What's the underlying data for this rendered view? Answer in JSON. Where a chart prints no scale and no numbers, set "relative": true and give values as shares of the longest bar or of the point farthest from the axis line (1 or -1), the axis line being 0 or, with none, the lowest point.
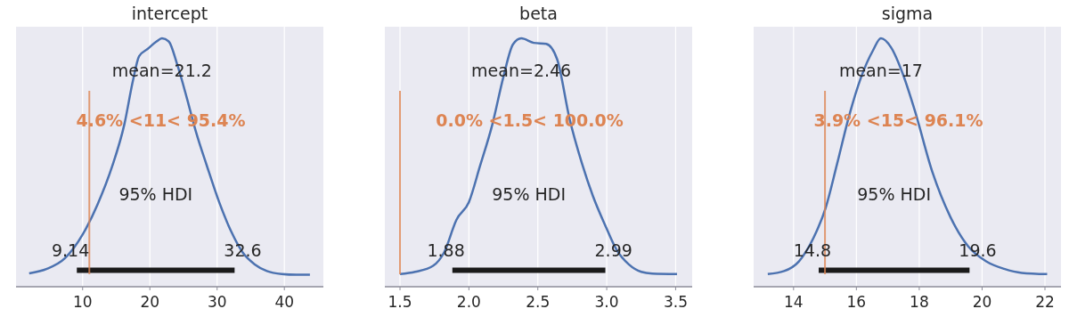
{
  "chart_data": [
    {
      "type": "line",
      "title": "intercept",
      "relative": true,
      "grid": "x",
      "series": [
        {
          "color": "#4c72b0",
          "x": [
            2.05,
            4.7,
            7.35,
            10,
            12.2,
            14.4,
            16.2,
            17.5,
            18.4,
            19.7,
            21.0,
            21.8,
            22.8,
            24.1,
            25.5,
            26.8,
            28.5,
            30.3,
            32.1,
            33.8,
            35.6,
            37.4,
            39.6,
            41.8,
            43.8
          ],
          "values": [
            0.054,
            0.072,
            0.114,
            0.21,
            0.33,
            0.485,
            0.653,
            0.832,
            0.928,
            0.958,
            0.988,
            1,
            0.988,
            0.892,
            0.76,
            0.629,
            0.485,
            0.341,
            0.222,
            0.138,
            0.09,
            0.063,
            0.051,
            0.048,
            0.048
          ]
        },
        {
          "color": "#1a1a1a",
          "x": [
            9.14,
            32.6
          ],
          "values": [
            0.066,
            0.066
          ]
        }
      ],
      "xlim": [
        0.1,
        45.8
      ],
      "xticks": [
        10,
        20,
        30,
        40
      ],
      "ref_lines": [
        {
          "axis": "x",
          "value": 11,
          "label": "4.6% <11< 95.4%",
          "color": "#dd8452"
        }
      ],
      "annotations": [
        "mean=21.2",
        "95% HDI",
        "9.14",
        "32.6"
      ]
    },
    {
      "type": "line",
      "title": "beta",
      "relative": true,
      "grid": "x",
      "series": [
        {
          "color": "#4c72b0",
          "x": [
            1.5,
            1.61,
            1.74,
            1.82,
            1.91,
            2.0,
            2.08,
            2.17,
            2.25,
            2.32,
            2.38,
            2.47,
            2.56,
            2.64,
            2.73,
            2.82,
            2.9,
            2.99,
            3.07,
            3.16,
            3.25,
            3.33,
            3.51
          ],
          "values": [
            0.051,
            0.06,
            0.084,
            0.138,
            0.27,
            0.341,
            0.485,
            0.653,
            0.844,
            0.976,
            1,
            0.982,
            0.978,
            0.916,
            0.677,
            0.497,
            0.365,
            0.246,
            0.15,
            0.09,
            0.06,
            0.053,
            0.051
          ]
        },
        {
          "color": "#1a1a1a",
          "x": [
            1.88,
            2.99
          ],
          "values": [
            0.066,
            0.066
          ]
        }
      ],
      "xlim": [
        1.39,
        3.62
      ],
      "xticks": [
        1.5,
        {
          "value": 2,
          "label": "2.0"
        },
        2.5,
        {
          "value": 3,
          "label": "3.0"
        },
        3.5
      ],
      "ref_lines": [
        {
          "axis": "x",
          "value": 1.5,
          "label": "0.0% <1.5< 100.0%",
          "color": "#dd8452"
        }
      ],
      "annotations": [
        "mean=2.46",
        "95% HDI",
        "1.88",
        "2.99"
      ]
    },
    {
      "type": "line",
      "title": "sigma",
      "relative": true,
      "grid": "x",
      "series": [
        {
          "color": "#4c72b0",
          "x": [
            13.18,
            13.7,
            14.17,
            14.64,
            15.02,
            15.39,
            15.77,
            16.15,
            16.53,
            16.78,
            17.1,
            17.48,
            17.85,
            18.42,
            18.99,
            19.56,
            20.13,
            20.7,
            21.26,
            22.07
          ],
          "values": [
            0.051,
            0.063,
            0.102,
            0.198,
            0.317,
            0.497,
            0.689,
            0.844,
            0.952,
            1,
            0.964,
            0.856,
            0.713,
            0.461,
            0.281,
            0.162,
            0.102,
            0.072,
            0.056,
            0.051
          ]
        },
        {
          "color": "#1a1a1a",
          "x": [
            14.8,
            19.6
          ],
          "values": [
            0.066,
            0.066
          ]
        }
      ],
      "xlim": [
        12.73,
        22.51
      ],
      "xticks": [
        14,
        16,
        18,
        20,
        22
      ],
      "ref_lines": [
        {
          "axis": "x",
          "value": 15,
          "label": "3.9% <15< 96.1%",
          "color": "#dd8452"
        }
      ],
      "annotations": [
        "mean=17",
        "95% HDI",
        "14.8",
        "19.6"
      ]
    }
  ]
}
